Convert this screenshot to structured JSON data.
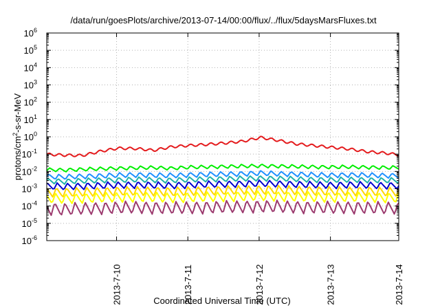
{
  "chart_data": {
    "type": "line",
    "title": "/data/run/goesPlots/archive/2013-07-14/00:00/flux/../flux/5daysMarsFluxes.txt",
    "xlabel": "Coordinated Universal Time (UTC)",
    "ylabel": "protons/cm²-s-sr-MeV",
    "ylabel_base": "protons/cm",
    "ylabel_sup": "2",
    "ylabel_rest": "-s-sr-MeV",
    "yscale": "log",
    "ylim": [
      "1e-6",
      "1e6"
    ],
    "xlim": [
      "2013-07-09 00:30",
      "2013-07-14 00:00"
    ],
    "x_ticks": [
      "2013-7-10",
      "2013-7-11",
      "2013-7-12",
      "2013-7-13",
      "2013-7-14"
    ],
    "y_ticks": [
      {
        "base": "10",
        "exp": "-6"
      },
      {
        "base": "10",
        "exp": "-5"
      },
      {
        "base": "10",
        "exp": "-4"
      },
      {
        "base": "10",
        "exp": "-3"
      },
      {
        "base": "10",
        "exp": "-2"
      },
      {
        "base": "10",
        "exp": "-1"
      },
      {
        "base": "10",
        "exp": "0"
      },
      {
        "base": "10",
        "exp": "1"
      },
      {
        "base": "10",
        "exp": "2"
      },
      {
        "base": "10",
        "exp": "3"
      },
      {
        "base": "10",
        "exp": "4"
      },
      {
        "base": "10",
        "exp": "5"
      },
      {
        "base": "10",
        "exp": "6"
      }
    ],
    "grid": true,
    "x_hours": [
      0,
      6,
      12,
      18,
      24,
      30,
      36,
      42,
      48,
      54,
      60,
      66,
      72,
      78,
      84,
      90,
      96,
      102,
      108,
      114,
      118.5
    ],
    "series": [
      {
        "color": "#e41a1c",
        "trend_log10": [
          -0.95,
          -1.0,
          -1.02,
          -0.78,
          -0.6,
          -0.62,
          -0.72,
          -0.52,
          -0.44,
          -0.38,
          -0.3,
          -0.2,
          0.02,
          -0.15,
          -0.35,
          -0.45,
          -0.55,
          -0.65,
          -0.8,
          -0.88,
          -0.98
        ]
      },
      {
        "color": "#00ee00",
        "trend_log10": [
          -1.9,
          -1.92,
          -1.88,
          -1.85,
          -1.82,
          -1.8,
          -1.78,
          -1.82,
          -1.76,
          -1.74,
          -1.72,
          -1.7,
          -1.68,
          -1.7,
          -1.72,
          -1.74,
          -1.75,
          -1.74,
          -1.76,
          -1.78,
          -1.78
        ]
      },
      {
        "color": "#1e90ff",
        "trend_log10": [
          -2.3,
          -2.32,
          -2.28,
          -2.26,
          -2.22,
          -2.2,
          -2.22,
          -2.24,
          -2.2,
          -2.18,
          -2.16,
          -2.14,
          -2.1,
          -2.14,
          -2.16,
          -2.2,
          -2.22,
          -2.2,
          -2.22,
          -2.24,
          -2.25
        ]
      },
      {
        "color": "#20b2aa",
        "trend_log10": [
          -2.55,
          -2.58,
          -2.55,
          -2.52,
          -2.5,
          -2.48,
          -2.5,
          -2.52,
          -2.48,
          -2.45,
          -2.44,
          -2.42,
          -2.4,
          -2.42,
          -2.45,
          -2.48,
          -2.5,
          -2.48,
          -2.5,
          -2.52,
          -2.52
        ]
      },
      {
        "color": "#0000cd",
        "trend_log10": [
          -2.85,
          -2.88,
          -2.85,
          -2.82,
          -2.8,
          -2.78,
          -2.8,
          -2.82,
          -2.78,
          -2.75,
          -2.74,
          -2.72,
          -2.7,
          -2.72,
          -2.75,
          -2.78,
          -2.8,
          -2.78,
          -2.8,
          -2.82,
          -2.82
        ]
      },
      {
        "color": "#ffd700",
        "trend_log10": [
          -3.2,
          -3.22,
          -3.2,
          -3.18,
          -3.15,
          -3.14,
          -3.15,
          -3.18,
          -3.15,
          -3.12,
          -3.1,
          -3.08,
          -3.06,
          -3.08,
          -3.1,
          -3.12,
          -3.15,
          -3.14,
          -3.15,
          -3.18,
          -3.18
        ]
      },
      {
        "color": "#ffff00",
        "trend_log10": [
          -3.55,
          -3.58,
          -3.55,
          -3.52,
          -3.5,
          -3.48,
          -3.5,
          -3.52,
          -3.5,
          -3.48,
          -3.46,
          -3.44,
          -3.42,
          -3.44,
          -3.46,
          -3.48,
          -3.5,
          -3.48,
          -3.5,
          -3.52,
          -3.52
        ]
      },
      {
        "color": "#9b3a6e",
        "trend_log10": [
          -4.15,
          -4.2,
          -4.15,
          -4.12,
          -4.1,
          -4.08,
          -4.1,
          -4.12,
          -4.1,
          -4.08,
          -4.06,
          -4.04,
          -4.02,
          -4.04,
          -4.06,
          -4.08,
          -4.1,
          -4.08,
          -4.1,
          -4.12,
          -4.12
        ]
      }
    ],
    "sawtooth_period_hours": 3.4
  }
}
